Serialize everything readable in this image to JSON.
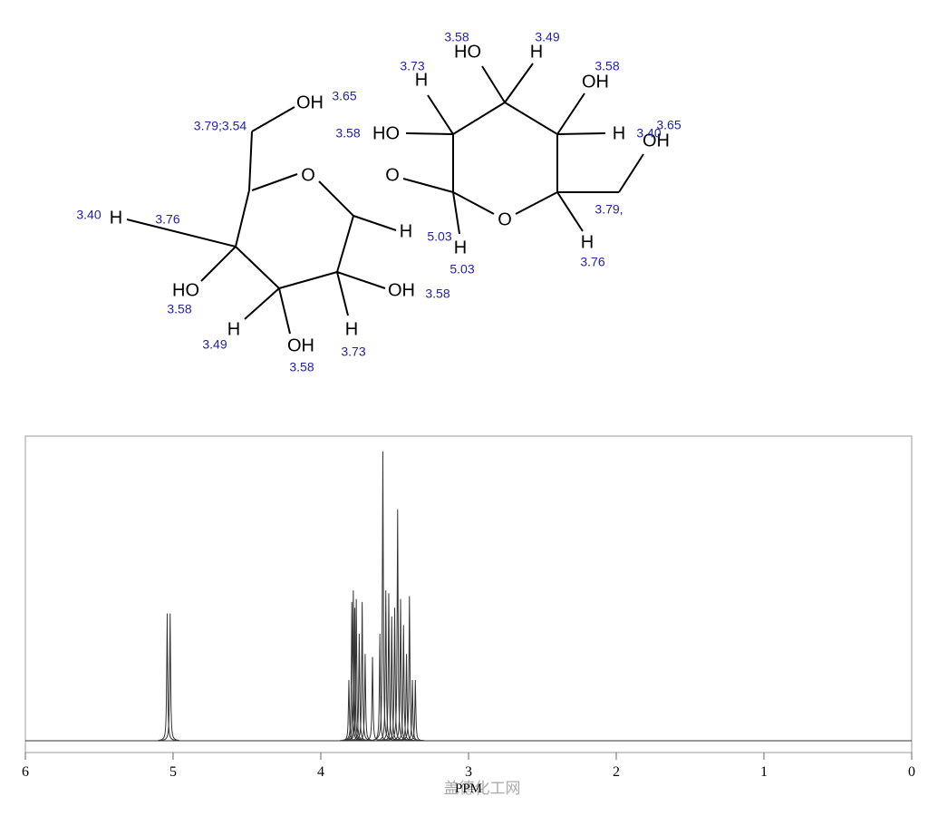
{
  "structure": {
    "atoms": [
      "OH",
      "O",
      "O",
      "HO",
      "H",
      "H",
      "OH",
      "HO",
      "H",
      "OH",
      "H",
      "O",
      "H",
      "H",
      "H",
      "HO",
      "OH",
      "H",
      "OH",
      "H"
    ],
    "shifts": [
      "3.65",
      "3.79;3.54",
      "3.58",
      "3.49",
      "3.73",
      "3.58",
      "3.58",
      "3.40",
      "3.65",
      "3.40",
      "3.76",
      "5.03",
      "5.03",
      "3.79,",
      "3.76",
      "3.58",
      "3.58",
      "3.49",
      "3.73",
      "3.58"
    ]
  },
  "chart_data": {
    "type": "nmr",
    "x_label": "PPM",
    "watermark": "盖德化工网",
    "xlim": [
      6,
      0
    ],
    "xticks": [
      6,
      5,
      4,
      3,
      2,
      1,
      0
    ],
    "ylim": [
      0,
      100
    ],
    "color": "#333333",
    "x": [
      5.04,
      5.02,
      3.81,
      3.79,
      3.78,
      3.77,
      3.76,
      3.74,
      3.72,
      3.7,
      3.65,
      3.6,
      3.58,
      3.56,
      3.54,
      3.52,
      3.5,
      3.48,
      3.46,
      3.44,
      3.42,
      3.4,
      3.38,
      3.36
    ],
    "values": [
      44,
      44,
      21,
      48,
      52,
      46,
      49,
      37,
      48,
      30,
      29,
      37,
      100,
      52,
      51,
      43,
      46,
      80,
      49,
      40,
      30,
      50,
      21,
      21
    ]
  }
}
